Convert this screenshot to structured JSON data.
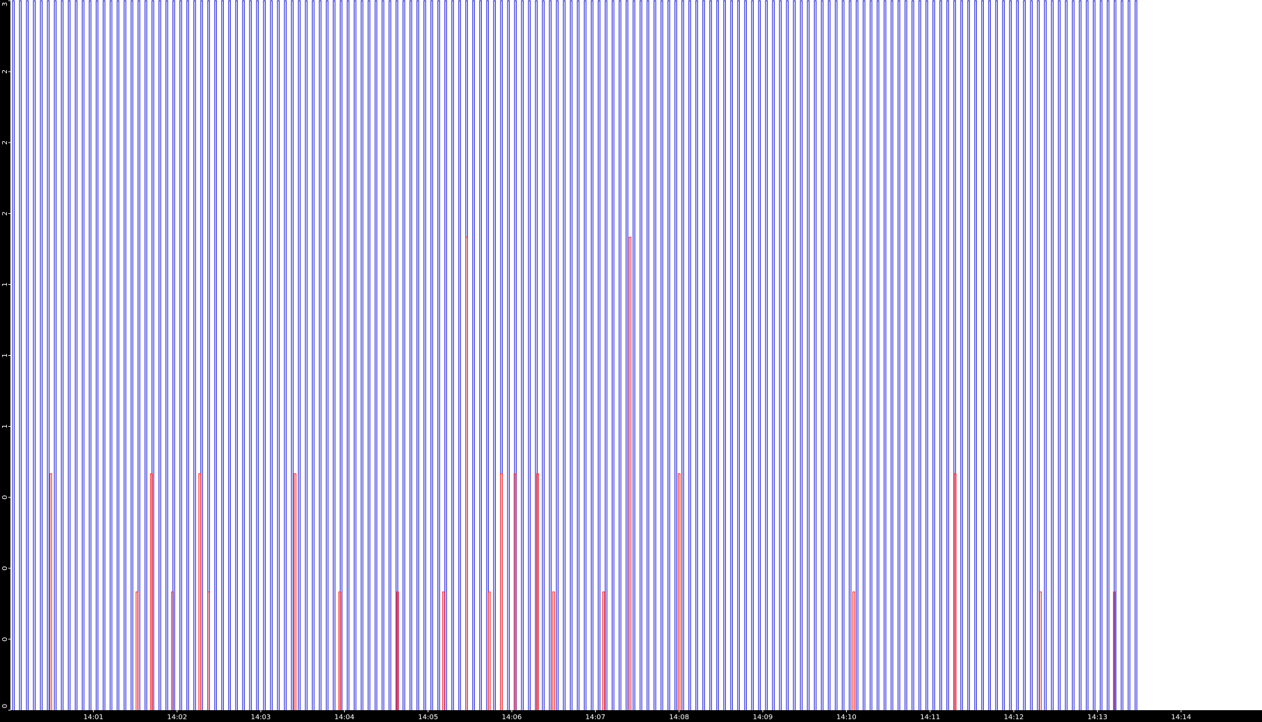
{
  "chart_data": {
    "type": "pulse",
    "xlim": [
      0,
      898
    ],
    "xticks": [
      {
        "value": 60,
        "label": "14:01"
      },
      {
        "value": 120,
        "label": "14:02"
      },
      {
        "value": 180,
        "label": "14:03"
      },
      {
        "value": 240,
        "label": "14:04"
      },
      {
        "value": 300,
        "label": "14:05"
      },
      {
        "value": 360,
        "label": "14:06"
      },
      {
        "value": 420,
        "label": "14:07"
      },
      {
        "value": 480,
        "label": "14:08"
      },
      {
        "value": 540,
        "label": "14:09"
      },
      {
        "value": 600,
        "label": "14:10"
      },
      {
        "value": 660,
        "label": "14:11"
      },
      {
        "value": 720,
        "label": "14:12"
      },
      {
        "value": 780,
        "label": "14:13"
      },
      {
        "value": 840,
        "label": "14:14"
      }
    ],
    "ylim": [
      0,
      3
    ],
    "yticks": [
      {
        "value": 0,
        "label": "0"
      },
      {
        "value": 0.3,
        "label": "0"
      },
      {
        "value": 0.6,
        "label": "0"
      },
      {
        "value": 0.9,
        "label": "0"
      },
      {
        "value": 1.2,
        "label": "1"
      },
      {
        "value": 1.5,
        "label": "1"
      },
      {
        "value": 1.8,
        "label": "1"
      },
      {
        "value": 2.1,
        "label": "2"
      },
      {
        "value": 2.4,
        "label": "2"
      },
      {
        "value": 2.7,
        "label": "2"
      },
      {
        "value": 3,
        "label": "3"
      }
    ],
    "series": [
      {
        "color": "#3030e0",
        "x": [
          2,
          7,
          12,
          17,
          22,
          27,
          32,
          37,
          42,
          47,
          52,
          57,
          62,
          67,
          72,
          77,
          82,
          87,
          92,
          97,
          102,
          107,
          112,
          117,
          122,
          127,
          132,
          137,
          142,
          147,
          152,
          157,
          162,
          167,
          172,
          177,
          182,
          187,
          192,
          197,
          202,
          207,
          212,
          217,
          222,
          227,
          232,
          237,
          242,
          247,
          252,
          257,
          262,
          267,
          272,
          277,
          282,
          287,
          292,
          297,
          302,
          307,
          312,
          317,
          322,
          327,
          332,
          337,
          342,
          347,
          352,
          357,
          362,
          367,
          372,
          377,
          382,
          387,
          392,
          397,
          402,
          407,
          412,
          417,
          422,
          427,
          432,
          437,
          442,
          447,
          452,
          457,
          462,
          467,
          472,
          477,
          482,
          487,
          492,
          497,
          502,
          507,
          512,
          517,
          522,
          527,
          532,
          537,
          542,
          547,
          552,
          557,
          562,
          567,
          572,
          577,
          582,
          587,
          592,
          597,
          602,
          607,
          612,
          617,
          622,
          627,
          632,
          637,
          642,
          647,
          652,
          657,
          662,
          667,
          672,
          677,
          682,
          687,
          692,
          697,
          702,
          707,
          712,
          717,
          722,
          727,
          732,
          737,
          742,
          747,
          752,
          757,
          762,
          767,
          772,
          777,
          782,
          787,
          792,
          797,
          802,
          807
        ],
        "values": [
          3,
          3,
          3,
          3,
          3,
          3,
          3,
          3,
          3,
          3,
          3,
          3,
          3,
          3,
          3,
          3,
          3,
          3,
          3,
          3,
          3,
          3,
          3,
          3,
          3,
          3,
          3,
          3,
          3,
          3,
          3,
          3,
          3,
          3,
          3,
          3,
          3,
          3,
          3,
          3,
          3,
          3,
          3,
          3,
          3,
          3,
          3,
          3,
          3,
          3,
          3,
          3,
          3,
          3,
          3,
          3,
          3,
          3,
          3,
          3,
          3,
          3,
          3,
          3,
          3,
          3,
          3,
          3,
          3,
          3,
          3,
          3,
          3,
          3,
          3,
          3,
          3,
          3,
          3,
          3,
          3,
          3,
          3,
          3,
          3,
          3,
          3,
          3,
          3,
          3,
          3,
          3,
          3,
          3,
          3,
          3,
          3,
          3,
          3,
          3,
          3,
          3,
          3,
          3,
          3,
          3,
          3,
          3,
          3,
          3,
          3,
          3,
          3,
          3,
          3,
          3,
          3,
          3,
          3,
          3,
          3,
          3,
          3,
          3,
          3,
          3,
          3,
          3,
          3,
          3,
          3,
          3,
          3,
          3,
          3,
          3,
          3,
          3,
          3,
          3,
          3,
          3,
          3,
          3,
          3,
          3,
          3,
          3,
          3,
          3,
          3,
          3,
          3,
          3,
          3,
          3,
          3,
          3,
          3,
          3,
          3,
          3
        ]
      },
      {
        "color": "#ff3030",
        "x": [
          28.8,
          90.6,
          101,
          116,
          135.6,
          141.9,
          204,
          236,
          277.5,
          310.4,
          327,
          343.3,
          352,
          361.7,
          377.9,
          389.4,
          425.2,
          444.2,
          479.4,
          604.6,
          677.3,
          738.5,
          791.5
        ],
        "values": [
          1,
          0.5,
          1,
          0.5,
          1,
          0.5,
          1,
          0.5,
          0.5,
          0.5,
          2,
          0.5,
          1,
          1,
          1,
          0.5,
          0.5,
          2,
          1,
          0.5,
          1,
          0.5,
          0.5
        ]
      }
    ]
  }
}
